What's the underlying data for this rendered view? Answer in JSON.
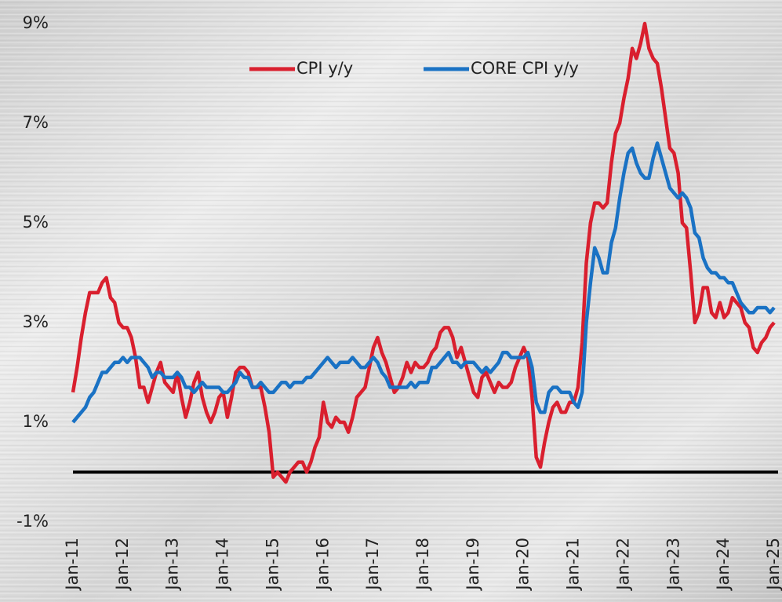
{
  "chart_data": {
    "type": "line",
    "categories": [
      "Jan-11",
      null,
      null,
      null,
      null,
      null,
      null,
      null,
      null,
      null,
      null,
      null,
      "Jan-12",
      null,
      null,
      null,
      null,
      null,
      null,
      null,
      null,
      null,
      null,
      null,
      "Jan-13",
      null,
      null,
      null,
      null,
      null,
      null,
      null,
      null,
      null,
      null,
      null,
      "Jan-14",
      null,
      null,
      null,
      null,
      null,
      null,
      null,
      null,
      null,
      null,
      null,
      "Jan-15",
      null,
      null,
      null,
      null,
      null,
      null,
      null,
      null,
      null,
      null,
      null,
      "Jan-16",
      null,
      null,
      null,
      null,
      null,
      null,
      null,
      null,
      null,
      null,
      null,
      "Jan-17",
      null,
      null,
      null,
      null,
      null,
      null,
      null,
      null,
      null,
      null,
      null,
      "Jan-18",
      null,
      null,
      null,
      null,
      null,
      null,
      null,
      null,
      null,
      null,
      null,
      "Jan-19",
      null,
      null,
      null,
      null,
      null,
      null,
      null,
      null,
      null,
      null,
      null,
      "Jan-20",
      null,
      null,
      null,
      null,
      null,
      null,
      null,
      null,
      null,
      null,
      null,
      "Jan-21",
      null,
      null,
      null,
      null,
      null,
      null,
      null,
      null,
      null,
      null,
      null,
      "Jan-22",
      null,
      null,
      null,
      null,
      null,
      null,
      null,
      null,
      null,
      null,
      null,
      "Jan-23",
      null,
      null,
      null,
      null,
      null,
      null,
      null,
      null,
      null,
      null,
      null,
      "Jan-24",
      null,
      null,
      null,
      null,
      null,
      null,
      null,
      null,
      null,
      null,
      null,
      "Jan-25"
    ],
    "series": [
      {
        "name": "CPI y/y",
        "color": "#d91f2e",
        "values": [
          1.6,
          2.1,
          2.7,
          3.2,
          3.6,
          3.6,
          3.6,
          3.8,
          3.9,
          3.5,
          3.4,
          3.0,
          2.9,
          2.9,
          2.7,
          2.3,
          1.7,
          1.7,
          1.4,
          1.7,
          2.0,
          2.2,
          1.8,
          1.7,
          1.6,
          2.0,
          1.5,
          1.1,
          1.4,
          1.8,
          2.0,
          1.5,
          1.2,
          1.0,
          1.2,
          1.5,
          1.6,
          1.1,
          1.5,
          2.0,
          2.1,
          2.1,
          2.0,
          1.7,
          1.7,
          1.7,
          1.3,
          0.8,
          -0.1,
          0.0,
          -0.1,
          -0.2,
          0.0,
          0.1,
          0.2,
          0.2,
          0.0,
          0.2,
          0.5,
          0.7,
          1.4,
          1.0,
          0.9,
          1.1,
          1.0,
          1.0,
          0.8,
          1.1,
          1.5,
          1.6,
          1.7,
          2.1,
          2.5,
          2.7,
          2.4,
          2.2,
          1.9,
          1.6,
          1.7,
          1.9,
          2.2,
          2.0,
          2.2,
          2.1,
          2.1,
          2.2,
          2.4,
          2.5,
          2.8,
          2.9,
          2.9,
          2.7,
          2.3,
          2.5,
          2.2,
          1.9,
          1.6,
          1.5,
          1.9,
          2.0,
          1.8,
          1.6,
          1.8,
          1.7,
          1.7,
          1.8,
          2.1,
          2.3,
          2.5,
          2.3,
          1.5,
          0.3,
          0.1,
          0.6,
          1.0,
          1.3,
          1.4,
          1.2,
          1.2,
          1.4,
          1.4,
          1.7,
          2.6,
          4.2,
          5.0,
          5.4,
          5.4,
          5.3,
          5.4,
          6.2,
          6.8,
          7.0,
          7.5,
          7.9,
          8.5,
          8.3,
          8.6,
          9.0,
          8.5,
          8.3,
          8.2,
          7.7,
          7.1,
          6.5,
          6.4,
          6.0,
          5.0,
          4.9,
          4.0,
          3.0,
          3.2,
          3.7,
          3.7,
          3.2,
          3.1,
          3.4,
          3.1,
          3.2,
          3.5,
          3.4,
          3.3,
          3.0,
          2.9,
          2.5,
          2.4,
          2.6,
          2.7,
          2.9,
          3.0
        ]
      },
      {
        "name": "CORE CPI y/y",
        "color": "#1a72c4",
        "values": [
          1.0,
          1.1,
          1.2,
          1.3,
          1.5,
          1.6,
          1.8,
          2.0,
          2.0,
          2.1,
          2.2,
          2.2,
          2.3,
          2.2,
          2.3,
          2.3,
          2.3,
          2.2,
          2.1,
          1.9,
          2.0,
          2.0,
          1.9,
          1.9,
          1.9,
          2.0,
          1.9,
          1.7,
          1.7,
          1.6,
          1.7,
          1.8,
          1.7,
          1.7,
          1.7,
          1.7,
          1.6,
          1.6,
          1.7,
          1.8,
          2.0,
          1.9,
          1.9,
          1.7,
          1.7,
          1.8,
          1.7,
          1.6,
          1.6,
          1.7,
          1.8,
          1.8,
          1.7,
          1.8,
          1.8,
          1.8,
          1.9,
          1.9,
          2.0,
          2.1,
          2.2,
          2.3,
          2.2,
          2.1,
          2.2,
          2.2,
          2.2,
          2.3,
          2.2,
          2.1,
          2.1,
          2.2,
          2.3,
          2.2,
          2.0,
          1.9,
          1.7,
          1.7,
          1.7,
          1.7,
          1.7,
          1.8,
          1.7,
          1.8,
          1.8,
          1.8,
          2.1,
          2.1,
          2.2,
          2.3,
          2.4,
          2.2,
          2.2,
          2.1,
          2.2,
          2.2,
          2.2,
          2.1,
          2.0,
          2.1,
          2.0,
          2.1,
          2.2,
          2.4,
          2.4,
          2.3,
          2.3,
          2.3,
          2.3,
          2.4,
          2.1,
          1.4,
          1.2,
          1.2,
          1.6,
          1.7,
          1.7,
          1.6,
          1.6,
          1.6,
          1.4,
          1.3,
          1.6,
          3.0,
          3.8,
          4.5,
          4.3,
          4.0,
          4.0,
          4.6,
          4.9,
          5.5,
          6.0,
          6.4,
          6.5,
          6.2,
          6.0,
          5.9,
          5.9,
          6.3,
          6.6,
          6.3,
          6.0,
          5.7,
          5.6,
          5.5,
          5.6,
          5.5,
          5.3,
          4.8,
          4.7,
          4.3,
          4.1,
          4.0,
          4.0,
          3.9,
          3.9,
          3.8,
          3.8,
          3.6,
          3.4,
          3.3,
          3.2,
          3.2,
          3.3,
          3.3,
          3.3,
          3.2,
          3.3
        ]
      }
    ],
    "ylim": [
      -1,
      9
    ],
    "yticks": [
      {
        "value": -1,
        "label": "-1%"
      },
      {
        "value": 1,
        "label": "1%"
      },
      {
        "value": 3,
        "label": "3%"
      },
      {
        "value": 5,
        "label": "5%"
      },
      {
        "value": 7,
        "label": "7%"
      },
      {
        "value": 9,
        "label": "9%"
      }
    ],
    "hline": {
      "value": 0,
      "color": "#000000"
    },
    "legend": "top"
  }
}
